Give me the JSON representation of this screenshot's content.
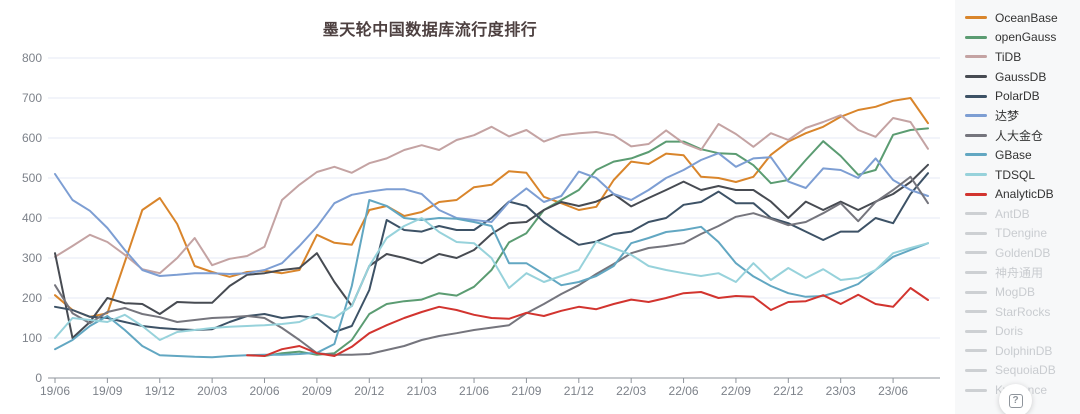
{
  "page": {
    "background": "#ffffff",
    "legend_background": "#f7f8f9"
  },
  "help_button": {
    "icon": "question-mark-icon",
    "glyph": "?"
  },
  "legend": {
    "items": [
      {
        "label": "OceanBase",
        "color": "#d9852b",
        "active": true
      },
      {
        "label": "openGauss",
        "color": "#5b9c72",
        "active": true
      },
      {
        "label": "TiDB",
        "color": "#c4a3a3",
        "active": true
      },
      {
        "label": "GaussDB",
        "color": "#474b52",
        "active": true
      },
      {
        "label": "PolarDB",
        "color": "#3d5266",
        "active": true
      },
      {
        "label": "达梦",
        "color": "#7d9ed3",
        "active": true
      },
      {
        "label": "人大金仓",
        "color": "#75757d",
        "active": true
      },
      {
        "label": "GBase",
        "color": "#62a7c2",
        "active": true
      },
      {
        "label": "TDSQL",
        "color": "#97d2db",
        "active": true
      },
      {
        "label": "AnalyticDB",
        "color": "#d2342f",
        "active": true
      },
      {
        "label": "AntDB",
        "color": "#cdd0d3",
        "active": false
      },
      {
        "label": "TDengine",
        "color": "#cdd0d3",
        "active": false
      },
      {
        "label": "GoldenDB",
        "color": "#cdd0d3",
        "active": false
      },
      {
        "label": "神舟通用",
        "color": "#cdd0d3",
        "active": false
      },
      {
        "label": "MogDB",
        "color": "#cdd0d3",
        "active": false
      },
      {
        "label": "StarRocks",
        "color": "#cdd0d3",
        "active": false
      },
      {
        "label": "Doris",
        "color": "#cdd0d3",
        "active": false
      },
      {
        "label": "DolphinDB",
        "color": "#cdd0d3",
        "active": false
      },
      {
        "label": "SequoiaDB",
        "color": "#cdd0d3",
        "active": false
      },
      {
        "label": "Kyligence",
        "color": "#cdd0d3",
        "active": false
      }
    ]
  },
  "chart_data": {
    "type": "line",
    "title": "墨天轮中国数据库流行度排行",
    "xlabel": "",
    "ylabel": "",
    "ylim": [
      0,
      800
    ],
    "y_ticks": [
      0,
      100,
      200,
      300,
      400,
      500,
      600,
      700,
      800
    ],
    "grid": true,
    "legend_position": "right",
    "x_tick_every": 3,
    "x": [
      "19/06",
      "19/07",
      "19/08",
      "19/09",
      "19/10",
      "19/11",
      "19/12",
      "20/01",
      "20/02",
      "20/03",
      "20/04",
      "20/05",
      "20/06",
      "20/07",
      "20/08",
      "20/09",
      "20/10",
      "20/11",
      "20/12",
      "21/01",
      "21/02",
      "21/03",
      "21/04",
      "21/05",
      "21/06",
      "21/07",
      "21/08",
      "21/09",
      "21/10",
      "21/11",
      "21/12",
      "22/01",
      "22/02",
      "22/03",
      "22/04",
      "22/05",
      "22/06",
      "22/07",
      "22/08",
      "22/09",
      "22/10",
      "22/11",
      "22/12",
      "23/01",
      "23/02",
      "23/03",
      "23/04",
      "23/05",
      "23/06",
      "23/07",
      "23/08"
    ],
    "series": [
      {
        "name": "OceanBase",
        "color": "#d9852b",
        "values": [
          207,
          170,
          153,
          162,
          290,
          420,
          450,
          385,
          280,
          265,
          253,
          265,
          268,
          262,
          270,
          358,
          338,
          333,
          420,
          430,
          405,
          415,
          440,
          445,
          477,
          483,
          517,
          513,
          453,
          437,
          420,
          428,
          495,
          541,
          535,
          561,
          557,
          503,
          500,
          490,
          503,
          558,
          591,
          612,
          628,
          653,
          670,
          678,
          693,
          700,
          637
        ]
      },
      {
        "name": "openGauss",
        "color": "#5b9c72",
        "values": [
          null,
          null,
          null,
          null,
          null,
          null,
          null,
          null,
          null,
          null,
          null,
          null,
          55,
          62,
          66,
          58,
          62,
          95,
          160,
          185,
          192,
          196,
          212,
          206,
          228,
          270,
          339,
          362,
          420,
          445,
          470,
          520,
          541,
          549,
          565,
          591,
          591,
          572,
          562,
          560,
          532,
          487,
          495,
          545,
          592,
          555,
          508,
          520,
          608,
          620,
          624
        ]
      },
      {
        "name": "TiDB",
        "color": "#c4a3a3",
        "values": [
          303,
          330,
          358,
          340,
          308,
          272,
          262,
          300,
          350,
          282,
          298,
          305,
          328,
          445,
          483,
          515,
          528,
          513,
          537,
          549,
          570,
          582,
          570,
          595,
          607,
          628,
          604,
          620,
          591,
          607,
          612,
          615,
          607,
          579,
          585,
          619,
          587,
          570,
          635,
          610,
          578,
          612,
          595,
          625,
          640,
          657,
          620,
          603,
          650,
          640,
          573
        ]
      },
      {
        "name": "GaussDB",
        "color": "#474b52",
        "values": [
          312,
          100,
          140,
          200,
          187,
          185,
          160,
          190,
          188,
          188,
          230,
          258,
          262,
          270,
          275,
          312,
          240,
          180,
          280,
          310,
          300,
          287,
          310,
          300,
          320,
          360,
          387,
          390,
          420,
          440,
          430,
          441,
          460,
          429,
          450,
          470,
          491,
          470,
          480,
          470,
          470,
          441,
          400,
          441,
          420,
          441,
          420,
          441,
          460,
          490,
          533
        ]
      },
      {
        "name": "PolarDB",
        "color": "#3d5266",
        "values": [
          178,
          170,
          153,
          150,
          140,
          130,
          125,
          122,
          120,
          122,
          140,
          155,
          160,
          150,
          155,
          150,
          115,
          130,
          220,
          395,
          370,
          366,
          380,
          370,
          370,
          400,
          441,
          430,
          390,
          360,
          333,
          341,
          360,
          366,
          390,
          400,
          433,
          440,
          466,
          437,
          437,
          400,
          387,
          366,
          345,
          366,
          366,
          400,
          387,
          460,
          512
        ]
      },
      {
        "name": "达梦",
        "color": "#7d9ed3",
        "values": [
          510,
          445,
          418,
          375,
          320,
          270,
          255,
          258,
          262,
          262,
          260,
          262,
          270,
          287,
          330,
          378,
          437,
          458,
          466,
          472,
          472,
          460,
          420,
          400,
          395,
          390,
          440,
          474,
          440,
          455,
          516,
          500,
          460,
          445,
          470,
          500,
          520,
          545,
          562,
          528,
          549,
          552,
          491,
          475,
          524,
          520,
          500,
          549,
          495,
          470,
          455
        ]
      },
      {
        "name": "人大金仓",
        "color": "#75757d",
        "values": [
          232,
          162,
          137,
          165,
          175,
          160,
          152,
          140,
          145,
          150,
          152,
          155,
          150,
          125,
          95,
          62,
          58,
          58,
          60,
          70,
          80,
          95,
          105,
          112,
          120,
          126,
          132,
          162,
          185,
          210,
          232,
          260,
          285,
          312,
          325,
          330,
          337,
          360,
          380,
          403,
          412,
          398,
          382,
          390,
          412,
          437,
          392,
          440,
          470,
          503,
          437
        ]
      },
      {
        "name": "GBase",
        "color": "#62a7c2",
        "values": [
          72,
          95,
          130,
          155,
          120,
          80,
          57,
          55,
          53,
          52,
          55,
          57,
          58,
          58,
          60,
          63,
          85,
          230,
          445,
          430,
          400,
          395,
          400,
          398,
          390,
          380,
          287,
          287,
          260,
          232,
          240,
          255,
          280,
          337,
          350,
          365,
          370,
          378,
          340,
          287,
          254,
          230,
          212,
          203,
          205,
          218,
          235,
          270,
          303,
          320,
          337
        ]
      },
      {
        "name": "TDSQL",
        "color": "#97d2db",
        "values": [
          100,
          150,
          145,
          140,
          158,
          130,
          95,
          115,
          120,
          125,
          128,
          130,
          132,
          135,
          140,
          160,
          150,
          180,
          280,
          350,
          380,
          400,
          365,
          340,
          337,
          300,
          225,
          262,
          240,
          255,
          270,
          341,
          325,
          308,
          280,
          270,
          262,
          255,
          262,
          240,
          287,
          245,
          275,
          250,
          272,
          245,
          250,
          270,
          312,
          325,
          337
        ]
      },
      {
        "name": "AnalyticDB",
        "color": "#d2342f",
        "values": [
          null,
          null,
          null,
          null,
          null,
          null,
          null,
          null,
          null,
          null,
          null,
          57,
          55,
          72,
          80,
          62,
          55,
          78,
          112,
          132,
          150,
          165,
          178,
          170,
          158,
          150,
          148,
          163,
          155,
          168,
          178,
          172,
          185,
          196,
          190,
          200,
          212,
          215,
          200,
          205,
          203,
          170,
          190,
          192,
          207,
          185,
          208,
          185,
          178,
          225,
          195
        ]
      }
    ],
    "inactive_series": [
      "AntDB",
      "TDengine",
      "GoldenDB",
      "神舟通用",
      "MogDB",
      "StarRocks",
      "Doris",
      "DolphinDB",
      "SequoiaDB",
      "Kyligence"
    ]
  },
  "axis_style": {
    "grid_color": "#e4eaf4",
    "axis_line_color": "#8d939b",
    "tick_label_color": "#7d828a"
  }
}
